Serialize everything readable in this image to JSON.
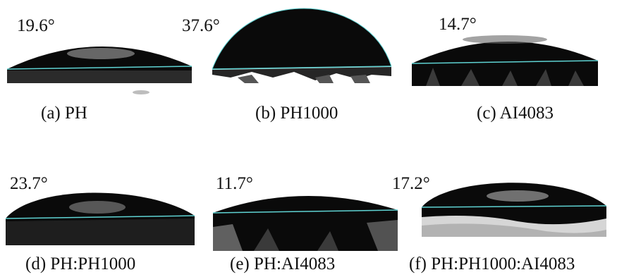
{
  "panels": [
    {
      "id": "a",
      "angle": "19.6°",
      "caption": "(a) PH"
    },
    {
      "id": "b",
      "angle": "37.6°",
      "caption": "(b) PH1000"
    },
    {
      "id": "c",
      "angle": "14.7°",
      "caption": "(c) AI4083"
    },
    {
      "id": "d",
      "angle": "23.7°",
      "caption": "(d) PH:PH1000"
    },
    {
      "id": "e",
      "angle": "11.7°",
      "caption": "(e) PH:AI4083"
    },
    {
      "id": "f",
      "angle": "17.2°",
      "caption": "(f) PH:PH1000:AI4083"
    }
  ],
  "colors": {
    "droplet": "#0a0a0a",
    "baseline": "#5fd3d3",
    "highlight": "#8a8a8a",
    "substrate": "#1a1a1a"
  }
}
